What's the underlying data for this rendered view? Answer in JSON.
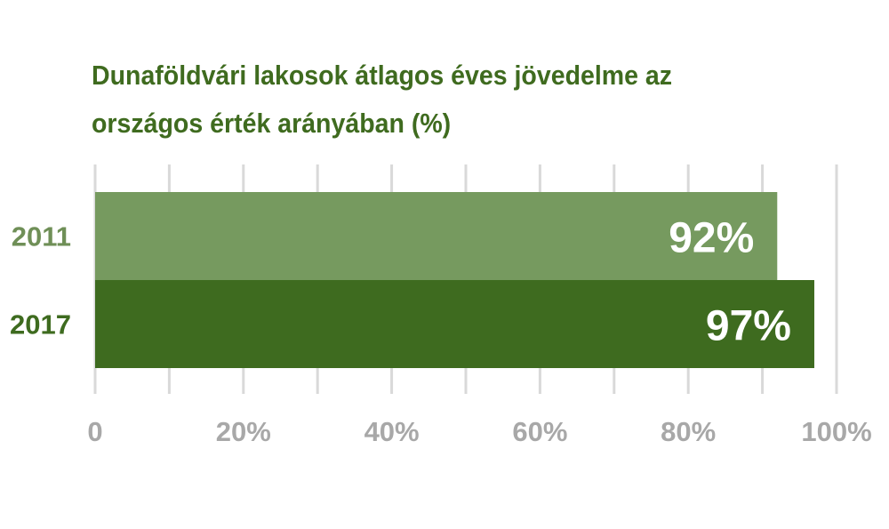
{
  "chart_data": {
    "type": "bar",
    "orientation": "horizontal",
    "title_lines": [
      "Dunaföldvári lakosok átlagos éves jövedelme az",
      "országos érték arányában (%)"
    ],
    "categories": [
      "2011",
      "2017"
    ],
    "values": [
      92,
      97
    ],
    "data_labels": [
      "92%",
      "97%"
    ],
    "bar_colors": [
      "#769a5f",
      "#3e6b1f"
    ],
    "category_label_colors": [
      "#6f8f57",
      "#3e6b1f"
    ],
    "xlim": [
      0,
      100
    ],
    "x_ticks": [
      0,
      10,
      20,
      30,
      40,
      50,
      60,
      70,
      80,
      90,
      100
    ],
    "x_tick_labels": [
      {
        "value": 0,
        "label": "0"
      },
      {
        "value": 20,
        "label": "20%"
      },
      {
        "value": 40,
        "label": "40%"
      },
      {
        "value": 60,
        "label": "60%"
      },
      {
        "value": 80,
        "label": "80%"
      },
      {
        "value": 100,
        "label": "100%"
      }
    ],
    "grid": true,
    "legend": "none",
    "title_color": "#3f6b1f",
    "gridline_color": "#d9d9d9",
    "tick_label_color": "#a8a8a8",
    "data_label_color": "#ffffff"
  }
}
